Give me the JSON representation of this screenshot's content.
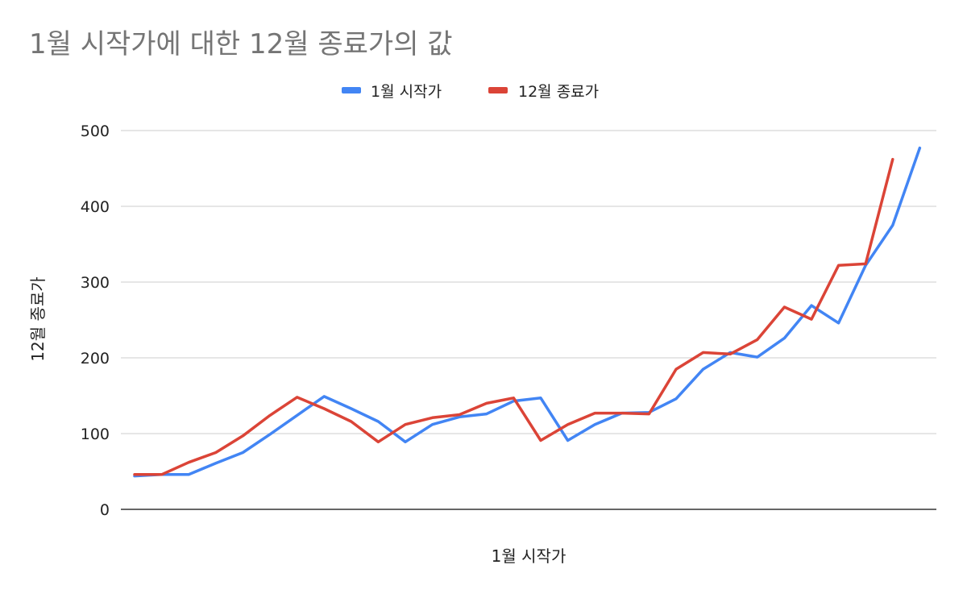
{
  "chart_data": {
    "type": "line",
    "title": "1월 시작가에 대한 12월 종료가의 값",
    "xlabel": "1월 시작가",
    "ylabel": "12월 종료가",
    "ylim": [
      0,
      500
    ],
    "yticks": [
      0,
      100,
      200,
      300,
      400,
      500
    ],
    "grid": true,
    "legend_position": "top",
    "series": [
      {
        "name": "1월 시작가",
        "color": "#4285F4",
        "values": [
          44,
          46,
          46,
          61,
          75,
          99,
          124,
          149,
          133,
          116,
          89,
          112,
          122,
          126,
          143,
          147,
          91,
          112,
          127,
          128,
          146,
          185,
          207,
          201,
          226,
          269,
          246,
          322,
          375,
          477
        ]
      },
      {
        "name": "12월 종료가",
        "color": "#DB4437",
        "values": [
          46,
          46,
          62,
          75,
          97,
          124,
          148,
          133,
          116,
          89,
          112,
          121,
          125,
          140,
          147,
          91,
          112,
          127,
          127,
          126,
          185,
          207,
          205,
          224,
          267,
          251,
          322,
          324,
          462
        ]
      }
    ]
  }
}
